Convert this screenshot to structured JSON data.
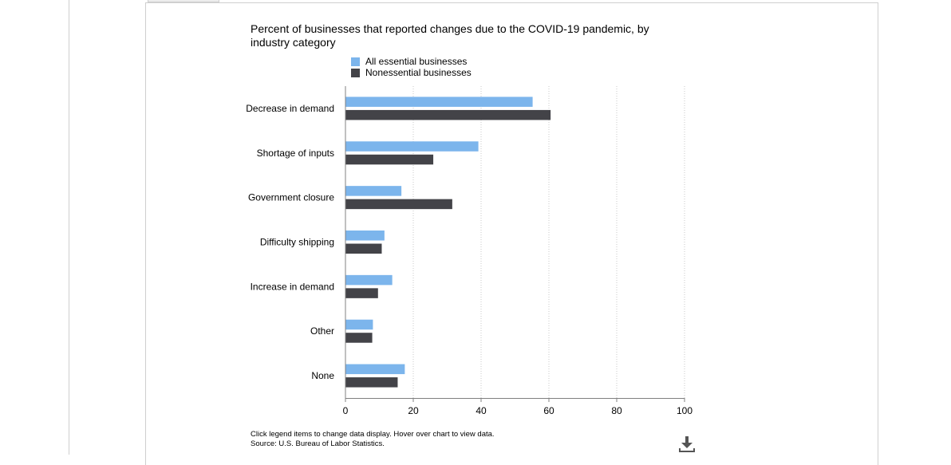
{
  "chart_data": {
    "type": "bar",
    "orientation": "horizontal",
    "title": "Percent of businesses that reported changes due to the COVID-19 pandemic, by industry category",
    "categories": [
      "Decrease in demand",
      "Shortage of inputs",
      "Government closure",
      "Difficulty shipping",
      "Increase in demand",
      "Other",
      "None"
    ],
    "series": [
      {
        "name": "All essential businesses",
        "color": "#7cb5ec",
        "values": [
          55.2,
          39.2,
          16.5,
          11.5,
          13.8,
          8.1,
          17.5
        ]
      },
      {
        "name": "Nonessential businesses",
        "color": "#434348",
        "values": [
          60.5,
          25.9,
          31.5,
          10.7,
          9.6,
          7.9,
          15.4
        ]
      }
    ],
    "xlim": [
      0,
      100
    ],
    "xticks": [
      "0",
      "20",
      "40",
      "60",
      "80",
      "100"
    ],
    "grid": true,
    "legend_position": "top"
  },
  "footnote": {
    "line1": "Click legend items to change data display. Hover over chart to view data.",
    "line2": "Source: U.S. Bureau of Labor Statistics."
  },
  "download_icon": "download-icon"
}
